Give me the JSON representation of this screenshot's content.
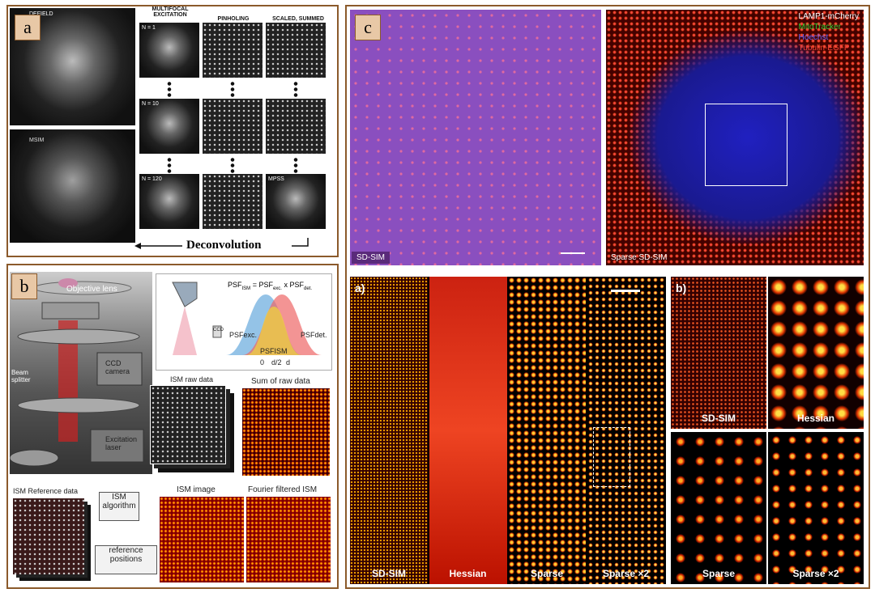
{
  "panel_a": {
    "label": "a",
    "widefield": "DEFIELD",
    "msim": "MSIM",
    "columns": [
      "MULTIFOCAL EXCITATION",
      "PINHOLING",
      "SCALED, SUMMED"
    ],
    "rows": [
      "N = 1",
      "N = 10",
      "N = 120"
    ],
    "mpss": "MPSS",
    "arrow_label": "Deconvolution"
  },
  "panel_b": {
    "label": "b",
    "objective": "Objective lens",
    "beam_splitter": "Beam splitter",
    "camera": "CCD camera",
    "laser": "Excitation laser",
    "formula": [
      "PSF",
      "ISM",
      " = PSF",
      "exc.",
      " x PSF",
      "det."
    ],
    "curves": {
      "exc": "PSFexc.",
      "ism": "PSFISM",
      "det": "PSFdet."
    },
    "axis": [
      "0",
      "d/2",
      "d"
    ],
    "ccd": "CCD",
    "raw": "ISM raw data",
    "sum": "Sum of raw data",
    "reference": "ISM Reference data",
    "algorithm": "ISM algorithm",
    "positions": "reference positions",
    "image": "ISM image",
    "fourier": "Fourier filtered ISM"
  },
  "panel_c": {
    "label": "c",
    "legend": [
      "LAMP1-mCherry",
      "MitoTracker",
      "Hoechst",
      "Tubulin-EGFP"
    ],
    "top": [
      "SD-SIM",
      "Sparse SD-SIM"
    ],
    "strip_label": "a)",
    "strip": [
      "SD-SIM",
      "Hessian",
      "Sparse",
      "Sparse ×2"
    ],
    "grid_label": "b)",
    "grid": [
      "SD-SIM",
      "Hessian",
      "Sparse",
      "Sparse ×2"
    ]
  }
}
